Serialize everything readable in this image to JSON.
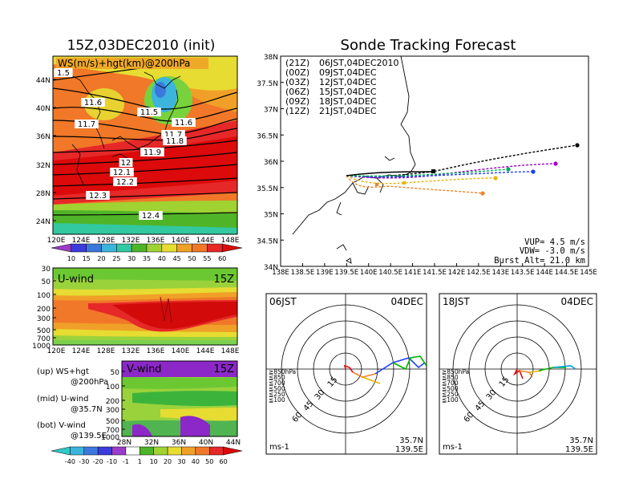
{
  "left": {
    "title": "15Z,03DEC2010 (init)",
    "map": {
      "label": "WS(m/s)+hgt(km)@200hPa",
      "y_ticks": [
        "44N",
        "40N",
        "36N",
        "32N",
        "28N",
        "24N"
      ],
      "x_ticks": [
        "120E",
        "124E",
        "128E",
        "132E",
        "136E",
        "140E",
        "144E",
        "148E"
      ],
      "contour_labels": [
        "1.5",
        "11.6",
        "11.5",
        "11.7",
        "11.6",
        "11.7",
        "11.8",
        "11.9",
        "12",
        "12.1",
        "12.2",
        "12.3",
        "12.4"
      ]
    },
    "ws_colorbar": [
      "10",
      "15",
      "20",
      "25",
      "30",
      "35",
      "40",
      "45",
      "50",
      "55",
      "60"
    ],
    "uwind": {
      "label": "U-wind",
      "time": "15Z",
      "y_ticks": [
        "30",
        "50",
        "100",
        "200",
        "300",
        "500",
        "700",
        "1000"
      ],
      "x_ticks": [
        "120E",
        "124E",
        "128E",
        "132E",
        "136E",
        "140E",
        "144E",
        "148E"
      ]
    },
    "legend": {
      "up1": "(up) WS+hgt",
      "up2": "@200hPa",
      "mid1": "(mid) U-wind",
      "mid2": "@35.7N",
      "bot1": "(bot) V-wind",
      "bot2": "@139.5E"
    },
    "vwind": {
      "label": "V-wind",
      "time": "15Z",
      "y_ticks": [
        "50",
        "100",
        "200",
        "300",
        "500",
        "700",
        "1000"
      ],
      "x_ticks": [
        "28N",
        "32N",
        "36N",
        "40N",
        "44N"
      ]
    },
    "wind_colorbar": [
      "-40",
      "-30",
      "-20",
      "-10",
      "-1",
      "1",
      "10",
      "20",
      "30",
      "40",
      "50",
      "60"
    ]
  },
  "right": {
    "title": "Sonde Tracking Forecast",
    "y_ticks": [
      "38N",
      "37.5N",
      "37N",
      "36.5N",
      "36N",
      "35.5N",
      "35N",
      "34.5N",
      "34N"
    ],
    "x_ticks": [
      "138E",
      "138.5E",
      "139E",
      "139.5E",
      "140E",
      "140.5E",
      "141E",
      "141.5E",
      "142E",
      "142.5E",
      "143E",
      "143.5E",
      "144E",
      "144.5E",
      "145E"
    ],
    "tracks": [
      {
        "z": "(21Z)",
        "jst": "06JST,04DEC2010",
        "color": "#000000"
      },
      {
        "z": "(00Z)",
        "jst": "09JST,04DEC",
        "color": "#a000c8"
      },
      {
        "z": "(03Z)",
        "jst": "12JST,04DEC",
        "color": "#1e3cff"
      },
      {
        "z": "(06Z)",
        "jst": "15JST,04DEC",
        "color": "#00aa5a"
      },
      {
        "z": "(09Z)",
        "jst": "18JST,04DEC",
        "color": "#e6b400"
      },
      {
        "z": "(12Z)",
        "jst": "21JST,04DEC",
        "color": "#f08228"
      }
    ],
    "params": {
      "vup": "VUP=  4.5 m/s",
      "vdw": "VDW= -3.0 m/s",
      "burst": "Burst Alt= 21.0 km"
    }
  },
  "polar1": {
    "time": "06JST",
    "date": "04DEC",
    "rings": [
      "15",
      "30",
      "45",
      "60"
    ],
    "levels": [
      "≧850hPa",
      "≦850",
      "≦700",
      "≦500",
      "≦250",
      "≦100"
    ],
    "loc1": "35.7N",
    "loc2": "139.5E",
    "unit": "ms-1"
  },
  "polar2": {
    "time": "18JST",
    "date": "04DEC",
    "rings": [
      "15",
      "30",
      "45",
      "60"
    ],
    "levels": [
      "≧850hPa",
      "≦850",
      "≦700",
      "≦500",
      "≦250",
      "≦100"
    ],
    "loc1": "35.7N",
    "loc2": "139.5E",
    "unit": "ms-1"
  }
}
